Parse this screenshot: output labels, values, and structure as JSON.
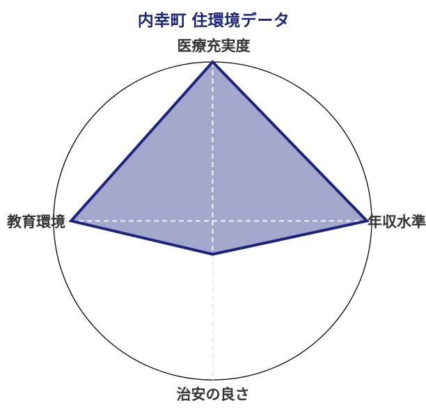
{
  "title": {
    "text": "内幸町 住環境データ",
    "color": "#1a237e"
  },
  "chart_data": {
    "type": "radar",
    "title": "内幸町 住環境データ",
    "categories": [
      "医療充実度",
      "年収水準",
      "治安の良さ",
      "教育環境"
    ],
    "values": [
      100,
      97,
      21,
      89
    ],
    "value_scale": [
      0,
      100
    ],
    "series_color": "#1a237e",
    "fill_color": "rgba(26,35,126,0.40)",
    "outer_circle_color": "#000000",
    "grid_style": "dashed",
    "grid_color_outside": "#e7e7e7",
    "grid_color_inside": "rgba(255,255,255,0.95)",
    "label_color": "#333333",
    "legend": "none"
  }
}
